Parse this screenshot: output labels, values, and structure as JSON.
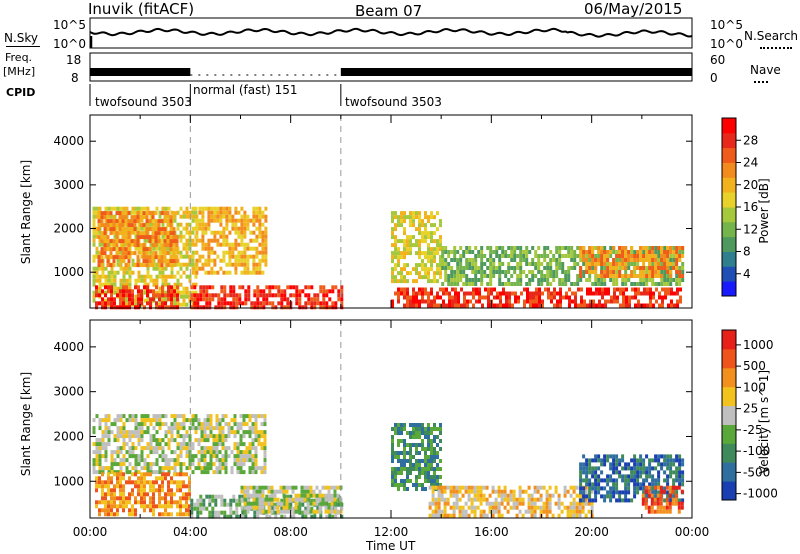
{
  "header": {
    "station": "Inuvik (fitACF)",
    "beam": "Beam 07",
    "date": "06/May/2015"
  },
  "panels": {
    "nsky": {
      "label": "N.Sky",
      "ticks": [
        "10^5",
        "10^0"
      ],
      "right_label": "N.Search",
      "right_ticks": [
        "10^5",
        "10^0"
      ]
    },
    "freq": {
      "label_top": "Freq.",
      "label_bottom": "[MHz]",
      "ticks": [
        "18",
        "8"
      ],
      "right_label": "Nave",
      "right_ticks": [
        "60",
        "0"
      ]
    },
    "cpid": {
      "label": "CPID",
      "modes": [
        {
          "name": "twofsound 3503",
          "start": 0,
          "end": 4.0
        },
        {
          "name": "normal (fast) 151",
          "start": 4.0,
          "end": 10.0
        },
        {
          "name": "twofsound 3503",
          "start": 10.0,
          "end": 24.0
        }
      ]
    }
  },
  "chart_data": [
    {
      "type": "heatmap",
      "title": "",
      "xlabel": "",
      "ylabel": "Slant Range [km]",
      "xlim": [
        0,
        24
      ],
      "ylim": [
        180,
        4600
      ],
      "yticks": [
        "1000",
        "2000",
        "3000",
        "4000"
      ],
      "colorbar": {
        "label": "Power [dB]",
        "ticks": [
          "4",
          "8",
          "12",
          "16",
          "20",
          "24",
          "28"
        ],
        "colors": [
          "#1a1aff",
          "#1f4fb4",
          "#2f7f8f",
          "#4e9a5e",
          "#74b44a",
          "#a6c83c",
          "#e8d22a",
          "#f2b21e",
          "#f28a1e",
          "#ef5b1a",
          "#e8281a",
          "#ff0000"
        ]
      },
      "series": [
        {
          "x0": 0.1,
          "x1": 4.2,
          "y0": 300,
          "y1": 2500,
          "level": 6
        },
        {
          "x0": 0.3,
          "x1": 3.5,
          "y0": 1200,
          "y1": 2400,
          "level": 8
        },
        {
          "x0": 4.2,
          "x1": 7.0,
          "y0": 1000,
          "y1": 2500,
          "level": 7
        },
        {
          "x0": 4.0,
          "x1": 10.0,
          "y0": 200,
          "y1": 700,
          "level": 10
        },
        {
          "x0": 0.2,
          "x1": 3.5,
          "y0": 200,
          "y1": 700,
          "level": 10
        },
        {
          "x0": 12.0,
          "x1": 23.5,
          "y0": 250,
          "y1": 650,
          "level": 10
        },
        {
          "x0": 12.0,
          "x1": 14.0,
          "y0": 800,
          "y1": 2400,
          "level": 6
        },
        {
          "x0": 14.0,
          "x1": 23.6,
          "y0": 750,
          "y1": 1600,
          "level": 4
        },
        {
          "x0": 19.5,
          "x1": 23.6,
          "y0": 900,
          "y1": 1600,
          "level": 8
        }
      ]
    },
    {
      "type": "heatmap",
      "title": "",
      "xlabel": "Time UT",
      "ylabel": "Slant Range [km]",
      "xlim": [
        0,
        24
      ],
      "ylim": [
        180,
        4600
      ],
      "xticks": [
        "00:00",
        "04:00",
        "08:00",
        "12:00",
        "16:00",
        "20:00",
        "00:00"
      ],
      "yticks": [
        "1000",
        "2000",
        "3000",
        "4000"
      ],
      "colorbar": {
        "label": "Velocity [m s^-1]",
        "ticks": [
          "1000",
          "500",
          "100",
          "25",
          "-25",
          "-100",
          "-500",
          "-1000"
        ],
        "colors": [
          "#1a3fb0",
          "#2f6fa0",
          "#3f8a5a",
          "#5aa83a",
          "#bfbfbf",
          "#f2c21e",
          "#f2901e",
          "#ef551a",
          "#e8201a"
        ]
      },
      "series": [
        {
          "x0": 0.1,
          "x1": 7.0,
          "y0": 1200,
          "y1": 2500,
          "level": 4
        },
        {
          "x0": 0.2,
          "x1": 4.0,
          "y0": 300,
          "y1": 1200,
          "level": 6
        },
        {
          "x0": 4.0,
          "x1": 10.0,
          "y0": 200,
          "y1": 700,
          "level": 3
        },
        {
          "x0": 6.0,
          "x1": 10.0,
          "y0": 300,
          "y1": 900,
          "level": 4
        },
        {
          "x0": 12.0,
          "x1": 14.0,
          "y0": 800,
          "y1": 2300,
          "level": 2
        },
        {
          "x0": 13.5,
          "x1": 20.0,
          "y0": 200,
          "y1": 900,
          "level": 5
        },
        {
          "x0": 19.5,
          "x1": 23.6,
          "y0": 600,
          "y1": 1600,
          "level": 1
        },
        {
          "x0": 22.0,
          "x1": 23.6,
          "y0": 300,
          "y1": 900,
          "level": 7
        }
      ]
    }
  ]
}
